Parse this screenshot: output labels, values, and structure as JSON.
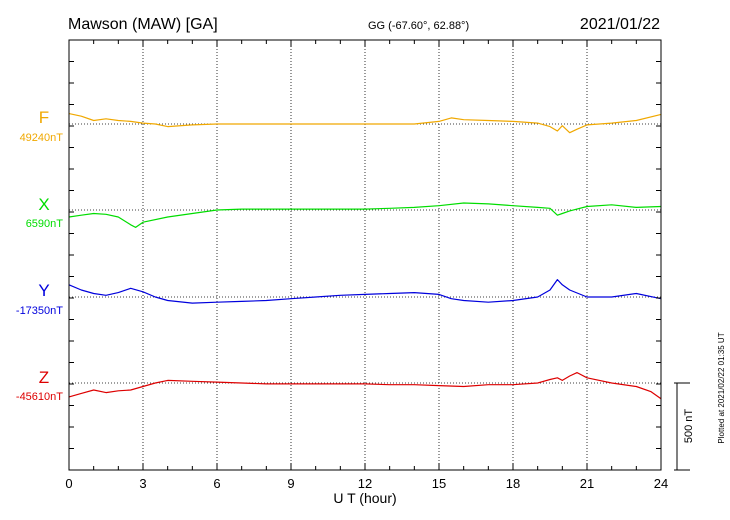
{
  "header": {
    "station": "Mawson (MAW)  [GA]",
    "coords": "GG (-67.60°,  62.88°)",
    "date": "2021/01/22"
  },
  "footer": {
    "xlabel": "U T (hour)",
    "plotted": "Plotted at 2021/02/22 01:35 UT",
    "scale_label": "500 nT"
  },
  "chart_data": {
    "type": "line",
    "x_range": [
      0,
      24
    ],
    "x_ticks": [
      "0",
      "3",
      "6",
      "9",
      "12",
      "15",
      "18",
      "21",
      "24"
    ],
    "xlabel": "U T (hour)",
    "grid": "vertical dotted lines every 3 hours",
    "scale_bar_nT": 500,
    "series": [
      {
        "name": "F",
        "baseline_label": "49240nT",
        "baseline_nT": 49240,
        "color": "#f0a800",
        "x": [
          0,
          0.5,
          1,
          1.5,
          2,
          2.5,
          3,
          3.5,
          4,
          5,
          6,
          7,
          8,
          9,
          10,
          11,
          12,
          13,
          14,
          15,
          15.5,
          16,
          17,
          18,
          19,
          19.5,
          19.8,
          20,
          20.3,
          20.6,
          21,
          22,
          23,
          24
        ],
        "values": [
          60,
          45,
          20,
          30,
          20,
          15,
          5,
          0,
          -15,
          -5,
          0,
          0,
          0,
          0,
          0,
          0,
          0,
          0,
          0,
          15,
          35,
          25,
          20,
          15,
          5,
          -15,
          -40,
          -10,
          -50,
          -30,
          -5,
          5,
          20,
          55
        ]
      },
      {
        "name": "X",
        "baseline_label": "6590nT",
        "baseline_nT": 6590,
        "color": "#00dd00",
        "x": [
          0,
          0.5,
          1,
          1.5,
          2,
          2.5,
          2.7,
          3,
          4,
          5,
          6,
          7,
          8,
          9,
          10,
          11,
          12,
          13,
          14,
          15,
          16,
          17,
          18,
          19,
          19.5,
          19.8,
          20,
          20.3,
          21,
          22,
          23,
          24
        ],
        "values": [
          -40,
          -30,
          -20,
          -25,
          -40,
          -85,
          -100,
          -70,
          -40,
          -20,
          0,
          5,
          5,
          5,
          5,
          5,
          5,
          10,
          15,
          25,
          40,
          35,
          25,
          15,
          10,
          -30,
          -20,
          -5,
          20,
          30,
          15,
          20
        ]
      },
      {
        "name": "Y",
        "baseline_label": "-17350nT",
        "baseline_nT": -17350,
        "color": "#0000dd",
        "x": [
          0,
          0.5,
          1,
          1.5,
          2,
          2.5,
          3,
          3.5,
          4,
          5,
          6,
          7,
          8,
          9,
          10,
          11,
          12,
          13,
          14,
          15,
          15.5,
          16,
          17,
          18,
          19,
          19.5,
          19.8,
          20,
          20.3,
          21,
          22,
          23,
          24
        ],
        "values": [
          70,
          40,
          20,
          10,
          25,
          50,
          30,
          0,
          -20,
          -35,
          -30,
          -25,
          -20,
          -10,
          0,
          10,
          15,
          20,
          25,
          15,
          -10,
          -20,
          -30,
          -20,
          0,
          40,
          100,
          70,
          40,
          0,
          0,
          20,
          -10
        ]
      },
      {
        "name": "Z",
        "baseline_label": "-45610nT",
        "baseline_nT": -45610,
        "color": "#dd0000",
        "x": [
          0,
          0.5,
          1,
          1.5,
          2,
          2.5,
          3,
          3.5,
          4,
          5,
          6,
          7,
          8,
          9,
          10,
          11,
          12,
          13,
          14,
          15,
          16,
          17,
          18,
          19,
          19.5,
          19.8,
          20,
          20.3,
          20.6,
          21,
          22,
          23,
          23.6,
          24
        ],
        "values": [
          -80,
          -60,
          -40,
          -55,
          -45,
          -40,
          -20,
          0,
          15,
          10,
          5,
          0,
          -5,
          -5,
          -5,
          -5,
          -5,
          -10,
          -10,
          -15,
          -20,
          -10,
          -10,
          0,
          20,
          30,
          15,
          40,
          60,
          30,
          0,
          -20,
          -50,
          -90
        ]
      }
    ]
  }
}
